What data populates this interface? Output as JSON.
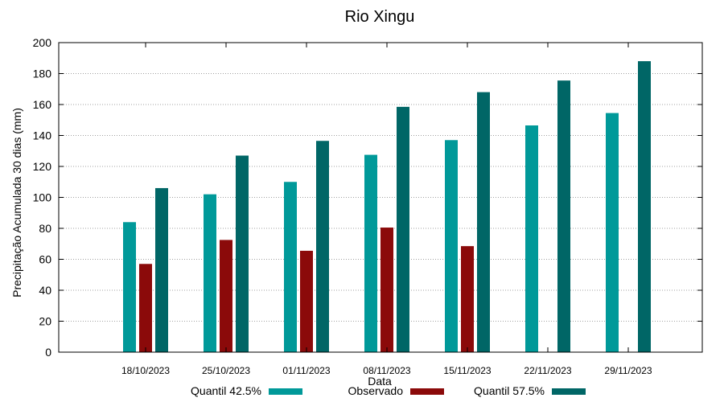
{
  "chart_data": {
    "type": "bar",
    "title": "Rio Xingu",
    "xlabel": "Data",
    "ylabel": "Precipitação Acumulada 30 dias (mm)",
    "ylim": [
      0,
      200
    ],
    "yticks": [
      "0",
      "20",
      "40",
      "60",
      "80",
      "100",
      "120",
      "140",
      "160",
      "180",
      "200"
    ],
    "grid": true,
    "legend_position": "bottom",
    "categories": [
      "18/10/2023",
      "25/10/2023",
      "01/11/2023",
      "08/11/2023",
      "15/11/2023",
      "22/11/2023",
      "29/11/2023"
    ],
    "series": [
      {
        "name": "Quantil 42.5%",
        "color": "#009999",
        "values": [
          84,
          102,
          110,
          127.5,
          137,
          146.5,
          154.5
        ]
      },
      {
        "name": "Observado",
        "color": "#8b0a0a",
        "values": [
          57,
          72.5,
          65.5,
          80.5,
          68.5,
          null,
          null
        ]
      },
      {
        "name": "Quantil 57.5%",
        "color": "#006666",
        "values": [
          106,
          127,
          136.5,
          158.5,
          168,
          175.5,
          188
        ]
      }
    ]
  }
}
